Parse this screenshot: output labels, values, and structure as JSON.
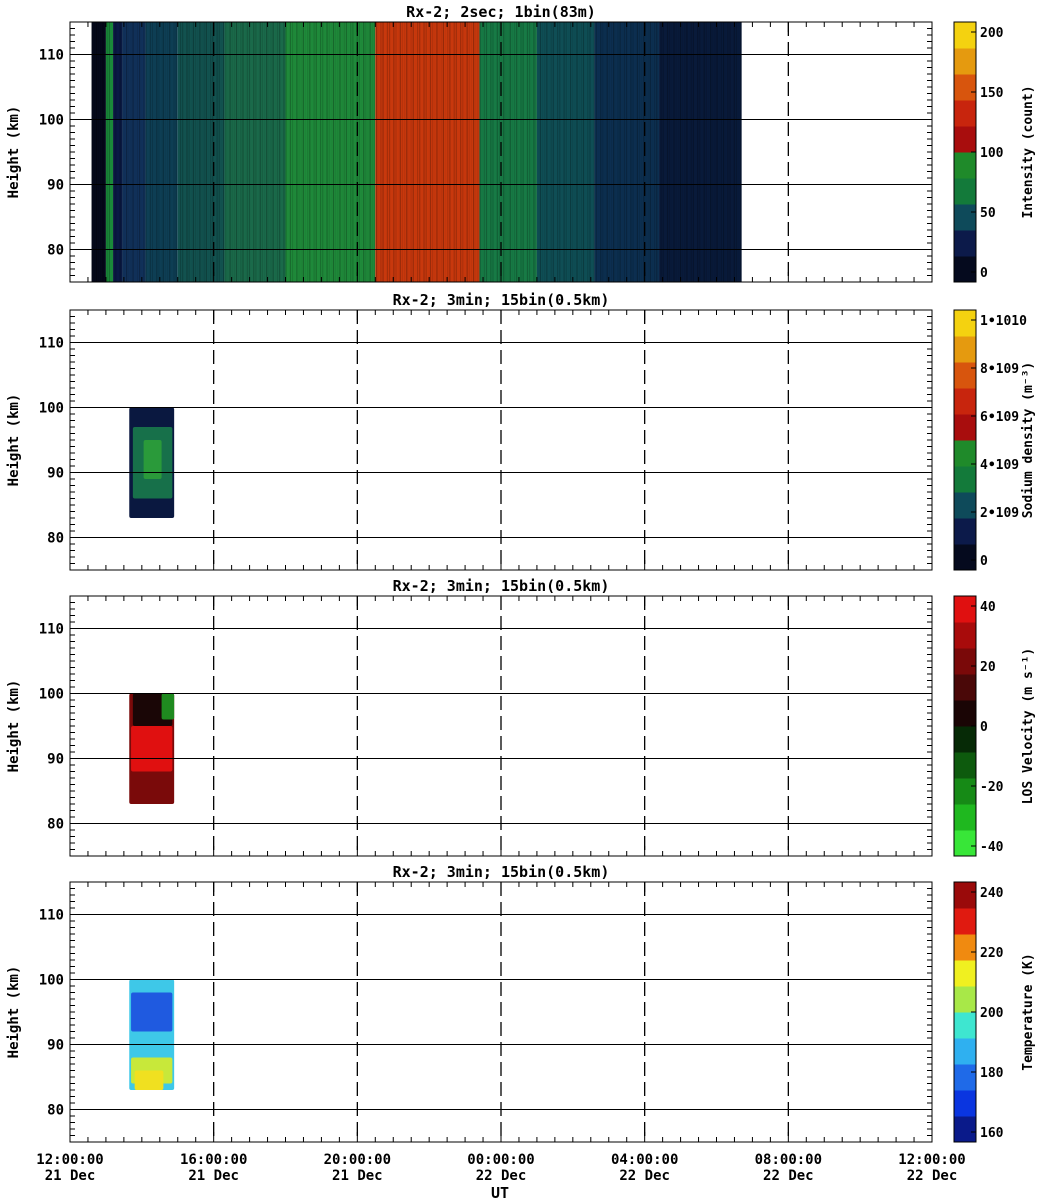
{
  "chart_data": [
    {
      "type": "heatmap",
      "title": "Rx-2;  2sec; 1bin(83m)",
      "ylabel": "Height (km)",
      "ylim": [
        75,
        115
      ],
      "yticks": [
        "80",
        "90",
        "100",
        "110"
      ],
      "colorbar": {
        "label": "Intensity (count)",
        "ticks": [
          "0",
          "50",
          "100",
          "150",
          "200"
        ],
        "colors": [
          "#050a1e",
          "#0c1a4a",
          "#0e4a5a",
          "#137a3a",
          "#1f8a2a",
          "#a80d0d",
          "#c8250d",
          "#d8550d",
          "#e59a0f",
          "#f4d210"
        ]
      },
      "time_blocks": [
        {
          "start_hours": 0.6,
          "end_hours": 1.0,
          "color": "#04081a"
        },
        {
          "start_hours": 1.0,
          "end_hours": 1.2,
          "color": "#1a8a3a"
        },
        {
          "start_hours": 1.2,
          "end_hours": 1.45,
          "color": "#0a1a45"
        },
        {
          "start_hours": 1.45,
          "end_hours": 2.1,
          "color": "#11315a"
        },
        {
          "start_hours": 2.1,
          "end_hours": 3.0,
          "color": "#0e3f55"
        },
        {
          "start_hours": 3.0,
          "end_hours": 4.3,
          "color": "#12524f"
        },
        {
          "start_hours": 4.3,
          "end_hours": 6.0,
          "color": "#1a6a4a"
        },
        {
          "start_hours": 6.0,
          "end_hours": 8.5,
          "color": "#1f8a3a"
        },
        {
          "start_hours": 8.5,
          "end_hours": 11.4,
          "color": "#c8380d"
        },
        {
          "start_hours": 11.4,
          "end_hours": 13.0,
          "color": "#177a45"
        },
        {
          "start_hours": 13.0,
          "end_hours": 14.6,
          "color": "#0f4e55"
        },
        {
          "start_hours": 14.6,
          "end_hours": 16.4,
          "color": "#0c2f50"
        },
        {
          "start_hours": 16.4,
          "end_hours": 18.7,
          "color": "#091a3a"
        }
      ]
    },
    {
      "type": "heatmap",
      "title": "Rx-2; 3min; 15bin(0.5km)",
      "ylabel": "Height (km)",
      "ylim": [
        75,
        115
      ],
      "yticks": [
        "80",
        "90",
        "100",
        "110"
      ],
      "colorbar": {
        "label": "Sodium density (m⁻³)",
        "ticks": [
          "0",
          "2•109",
          "4•109",
          "6•109",
          "8•109",
          "1•1010"
        ],
        "colors": [
          "#050a1e",
          "#0c1a4a",
          "#0e4a5a",
          "#137a3a",
          "#1f8a2a",
          "#a80d0d",
          "#c8250d",
          "#d8550d",
          "#e59a0f",
          "#f4d210"
        ]
      },
      "blobs": [
        {
          "t_start": 1.65,
          "t_end": 2.9,
          "h_low": 83,
          "h_high": 100,
          "color": "#0a1840"
        },
        {
          "t_start": 1.75,
          "t_end": 2.85,
          "h_low": 86,
          "h_high": 97,
          "color": "#17704a"
        },
        {
          "t_start": 2.05,
          "t_end": 2.55,
          "h_low": 89,
          "h_high": 95,
          "color": "#2a9a3a"
        }
      ]
    },
    {
      "type": "heatmap",
      "title": "Rx-2; 3min; 15bin(0.5km)",
      "ylabel": "Height (km)",
      "ylim": [
        75,
        115
      ],
      "yticks": [
        "80",
        "90",
        "100",
        "110"
      ],
      "colorbar": {
        "label": "LOS Velocity (m s⁻¹)",
        "ticks": [
          "-40",
          "-20",
          "0",
          "20",
          "40"
        ],
        "colors": [
          "#38e638",
          "#1fb81f",
          "#168a16",
          "#0d5a0d",
          "#062a06",
          "#1a0505",
          "#4a0808",
          "#7a0909",
          "#a80b0b",
          "#e01010"
        ]
      },
      "blobs": [
        {
          "t_start": 1.65,
          "t_end": 2.9,
          "h_low": 83,
          "h_high": 100,
          "color": "#7a0a0a"
        },
        {
          "t_start": 1.75,
          "t_end": 2.85,
          "h_low": 95,
          "h_high": 100,
          "color": "#1a0606"
        },
        {
          "t_start": 2.55,
          "t_end": 2.9,
          "h_low": 96,
          "h_high": 100,
          "color": "#1f8a1f"
        },
        {
          "t_start": 1.7,
          "t_end": 2.85,
          "h_low": 88,
          "h_high": 95,
          "color": "#e01010"
        }
      ]
    },
    {
      "type": "heatmap",
      "title": "Rx-2; 3min; 15bin(0.5km)",
      "ylabel": "Height (km)",
      "ylim": [
        75,
        115
      ],
      "yticks": [
        "80",
        "90",
        "100",
        "110"
      ],
      "colorbar": {
        "label": "Temperature (K)",
        "ticks": [
          "160",
          "180",
          "200",
          "220",
          "240"
        ],
        "colors": [
          "#0a1a8a",
          "#0a35e0",
          "#1f6ae8",
          "#2fb0f0",
          "#3ee6d0",
          "#a8e848",
          "#f0f020",
          "#f08a10",
          "#e01a10",
          "#9a0a0a"
        ]
      },
      "blobs": [
        {
          "t_start": 1.65,
          "t_end": 2.9,
          "h_low": 83,
          "h_high": 100,
          "color": "#3ec8e8"
        },
        {
          "t_start": 1.7,
          "t_end": 2.85,
          "h_low": 92,
          "h_high": 98,
          "color": "#1f5ae0"
        },
        {
          "t_start": 1.7,
          "t_end": 2.85,
          "h_low": 84,
          "h_high": 88,
          "color": "#c8e83a"
        },
        {
          "t_start": 1.8,
          "t_end": 2.6,
          "h_low": 83,
          "h_high": 86,
          "color": "#f0e020"
        }
      ]
    }
  ],
  "x_axis": {
    "label": "UT",
    "range_hours": [
      0,
      24
    ],
    "ticks": [
      {
        "time": "12:00:00",
        "date": "21 Dec"
      },
      {
        "time": "16:00:00",
        "date": "21 Dec"
      },
      {
        "time": "20:00:00",
        "date": "21 Dec"
      },
      {
        "time": "00:00:00",
        "date": "22 Dec"
      },
      {
        "time": "04:00:00",
        "date": "22 Dec"
      },
      {
        "time": "08:00:00",
        "date": "22 Dec"
      },
      {
        "time": "12:00:00",
        "date": "22 Dec"
      }
    ]
  }
}
